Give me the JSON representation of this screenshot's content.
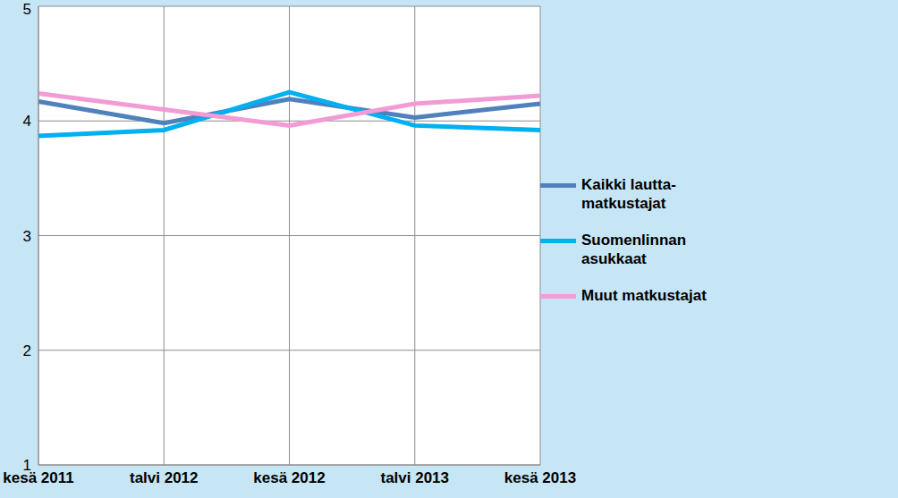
{
  "chart_data": {
    "type": "line",
    "categories": [
      "kesä 2011",
      "talvi 2012",
      "kesä 2012",
      "talvi 2013",
      "kesä 2013"
    ],
    "series": [
      {
        "name": "Kaikki lautta-matkustajat",
        "color": "#4f81bd",
        "values": [
          4.17,
          3.98,
          4.19,
          4.03,
          4.15
        ]
      },
      {
        "name": "Suomenlinnan asukkaat",
        "color": "#00b0f0",
        "values": [
          3.87,
          3.92,
          4.25,
          3.96,
          3.92
        ]
      },
      {
        "name": "Muut matkustajat",
        "color": "#f29bd4",
        "values": [
          4.24,
          4.1,
          3.96,
          4.15,
          4.22
        ]
      }
    ],
    "ylim": [
      1,
      5
    ],
    "yticks": [
      1,
      2,
      3,
      4,
      5
    ],
    "grid": true,
    "legend": "right"
  }
}
